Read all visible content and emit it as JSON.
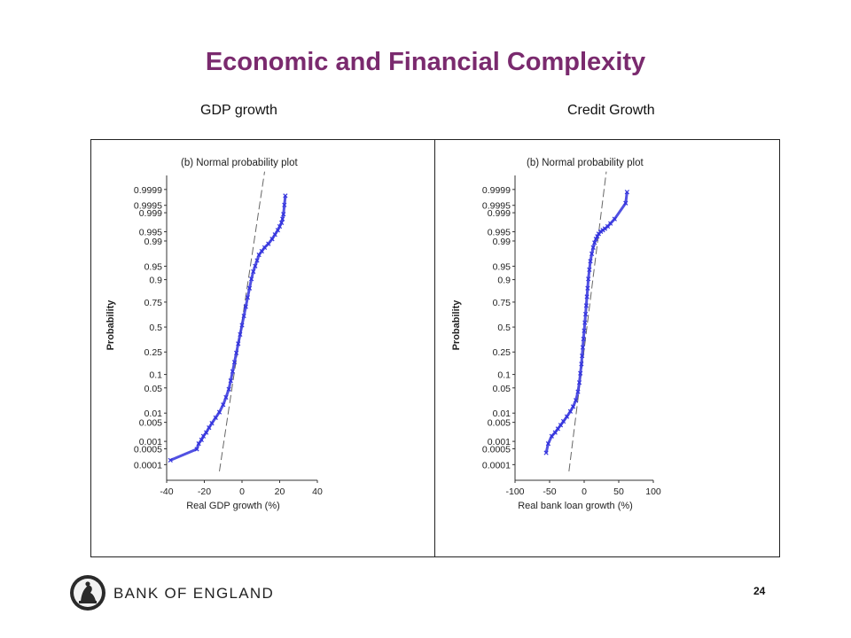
{
  "page": {
    "title": "Economic and Financial Complexity",
    "page_number": "24",
    "logo_text": "BANK OF ENGLAND"
  },
  "panels": [
    {
      "heading": "GDP growth"
    },
    {
      "heading": "Credit Growth"
    }
  ],
  "chart_data": [
    {
      "type": "scatter",
      "title": "(b) Normal probability plot",
      "xlabel": "Real GDP growth (%)",
      "ylabel": "Probability",
      "xlim": [
        -40,
        40
      ],
      "xticks": [
        -40,
        -20,
        0,
        20,
        40
      ],
      "yscale": "normal-probability",
      "yticks": [
        "0.0001",
        "0.0005",
        "0.001",
        "0.005",
        "0.01",
        "0.05",
        "0.1",
        "0.25",
        "0.5",
        "0.75",
        "0.9",
        "0.95",
        "0.99",
        "0.995",
        "0.999",
        "0.9995",
        "0.9999"
      ],
      "reference_line": {
        "x": [
          -12,
          12
        ],
        "z": [
          -3.9,
          4.2
        ]
      },
      "marker_color": "#3333dd",
      "series": [
        {
          "x": [
            -38.0,
            -24.0,
            -23.0,
            -21.5,
            -20.5,
            -19.0,
            -17.5,
            -16.0,
            -14.0,
            -12.0,
            -10.0,
            -8.5,
            -7.0,
            -6.0,
            -5.0,
            -4.0,
            -3.0,
            -2.0,
            -1.0,
            0.0,
            1.0,
            2.0,
            3.0,
            4.0,
            5.0,
            6.0,
            7.0,
            8.0,
            9.0,
            10.5,
            12.0,
            14.0,
            16.0,
            17.5,
            19.0,
            20.0,
            21.0,
            21.5,
            22.0,
            22.5,
            23.0
          ],
          "z": [
            -3.6,
            -3.3,
            -3.15,
            -3.05,
            -2.95,
            -2.85,
            -2.72,
            -2.6,
            -2.45,
            -2.3,
            -2.1,
            -1.9,
            -1.68,
            -1.45,
            -1.2,
            -0.95,
            -0.7,
            -0.45,
            -0.2,
            0.05,
            0.3,
            0.55,
            0.8,
            1.05,
            1.3,
            1.5,
            1.65,
            1.8,
            1.95,
            2.05,
            2.15,
            2.25,
            2.38,
            2.5,
            2.62,
            2.72,
            2.82,
            2.92,
            3.05,
            3.3,
            3.55
          ]
        }
      ]
    },
    {
      "type": "scatter",
      "title": "(b) Normal probability plot",
      "xlabel": "Real bank loan growth (%)",
      "ylabel": "Probability",
      "xlim": [
        -100,
        100
      ],
      "xticks": [
        -100,
        -50,
        0,
        50,
        100
      ],
      "yscale": "normal-probability",
      "yticks": [
        "0.0001",
        "0.0005",
        "0.001",
        "0.005",
        "0.01",
        "0.05",
        "0.1",
        "0.25",
        "0.5",
        "0.75",
        "0.9",
        "0.95",
        "0.99",
        "0.995",
        "0.999",
        "0.9995",
        "0.9999"
      ],
      "reference_line": {
        "x": [
          -22,
          32
        ],
        "z": [
          -3.9,
          4.2
        ]
      },
      "marker_color": "#3333dd",
      "series": [
        {
          "x": [
            -55.0,
            -52.0,
            -47.0,
            -42.0,
            -38.0,
            -34.0,
            -30.0,
            -25.0,
            -20.0,
            -16.0,
            -12.0,
            -9.0,
            -7.0,
            -5.5,
            -4.0,
            -3.0,
            -2.0,
            -1.0,
            0.0,
            1.0,
            2.0,
            3.0,
            4.0,
            5.0,
            6.0,
            7.5,
            9.0,
            11.0,
            13.0,
            15.0,
            17.0,
            19.0,
            21.0,
            24.0,
            27.0,
            30.0,
            34.0,
            38.0,
            44.0,
            60.0,
            62.0
          ],
          "z": [
            -3.4,
            -3.15,
            -2.95,
            -2.85,
            -2.75,
            -2.65,
            -2.55,
            -2.42,
            -2.28,
            -2.15,
            -1.98,
            -1.75,
            -1.5,
            -1.25,
            -1.0,
            -0.78,
            -0.55,
            -0.32,
            -0.1,
            0.12,
            0.35,
            0.58,
            0.82,
            1.05,
            1.3,
            1.55,
            1.78,
            1.98,
            2.15,
            2.28,
            2.38,
            2.45,
            2.52,
            2.58,
            2.62,
            2.66,
            2.72,
            2.8,
            2.92,
            3.35,
            3.65
          ]
        }
      ]
    }
  ]
}
